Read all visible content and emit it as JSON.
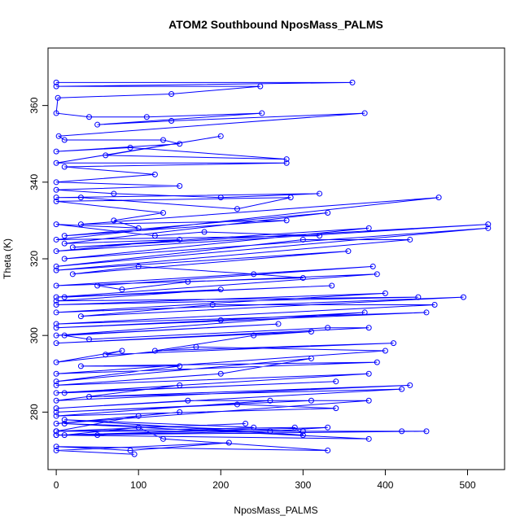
{
  "chart_data": {
    "type": "scatter",
    "title": "ATOM2 Southbound NposMass_PALMS",
    "xlabel": "NposMass_PALMS",
    "ylabel": "Theta (K)",
    "xlim": [
      -10,
      545
    ],
    "ylim": [
      265,
      375
    ],
    "x_ticks": [
      0,
      100,
      200,
      300,
      400,
      500
    ],
    "y_ticks": [
      280,
      300,
      320,
      340,
      360
    ],
    "x_tick_labels": [
      "0",
      "100",
      "200",
      "300",
      "400",
      "500"
    ],
    "y_tick_labels": [
      "280",
      "300",
      "320",
      "340",
      "360"
    ],
    "grid": false,
    "legend": "none",
    "marker": "open-circle",
    "connect_points": true,
    "color": "#0000ff",
    "series": [
      {
        "x": [
          0,
          360,
          0,
          248,
          140,
          2,
          0,
          40,
          110,
          250,
          50,
          140,
          375,
          3,
          10,
          130,
          150,
          0,
          90,
          280,
          60,
          200,
          0,
          280,
          10,
          120,
          0,
          150,
          0,
          70,
          200,
          320,
          0,
          30,
          220,
          285,
          0,
          130,
          70,
          100,
          0,
          120,
          180,
          320,
          0,
          465,
          30,
          280,
          10,
          330,
          10,
          150,
          0,
          525,
          20,
          380,
          10,
          525,
          0,
          300,
          430,
          0,
          355,
          20,
          100,
          240,
          300,
          0,
          385,
          50,
          80,
          160,
          390,
          0,
          335,
          10,
          200,
          0,
          440,
          0,
          400,
          0,
          495,
          30,
          190,
          460,
          0,
          450,
          0,
          200,
          375,
          0,
          270,
          10,
          40,
          330,
          380,
          0,
          310,
          240,
          120,
          410,
          60,
          80,
          0,
          170,
          400,
          0,
          390,
          30,
          150,
          0,
          310,
          200,
          0,
          380,
          0,
          340,
          10,
          150,
          0,
          430,
          40,
          420,
          0,
          160,
          310,
          0,
          220,
          340,
          0,
          260,
          380,
          0,
          150,
          100,
          0,
          230,
          0,
          290,
          300,
          10,
          240,
          50,
          0,
          380,
          10,
          300,
          0,
          420,
          450,
          0,
          330,
          260,
          10,
          100,
          130,
          330,
          0,
          90,
          210,
          0,
          95
        ],
        "y": [
          366,
          366,
          365,
          365,
          363,
          362,
          358,
          357,
          357,
          358,
          355,
          356,
          358,
          352,
          351,
          351,
          350,
          348,
          349,
          346,
          347,
          352,
          345,
          345,
          344,
          342,
          340,
          339,
          338,
          337,
          336,
          337,
          336,
          336,
          333,
          336,
          335,
          332,
          330,
          328,
          329,
          326,
          327,
          326,
          325,
          336,
          329,
          330,
          326,
          332,
          324,
          325,
          322,
          329,
          323,
          328,
          320,
          328,
          318,
          325,
          325,
          317,
          322,
          316,
          318,
          316,
          315,
          313,
          318,
          313,
          312,
          314,
          316,
          310,
          313,
          310,
          312,
          309,
          310,
          308,
          311,
          306,
          310,
          305,
          308,
          308,
          303,
          306,
          302,
          304,
          306,
          300,
          303,
          300,
          299,
          302,
          302,
          298,
          301,
          300,
          296,
          298,
          295,
          296,
          293,
          297,
          296,
          290,
          293,
          292,
          292,
          288,
          294,
          290,
          287,
          290,
          285,
          288,
          285,
          287,
          283,
          287,
          284,
          286,
          281,
          283,
          283,
          280,
          282,
          281,
          279,
          283,
          283,
          277,
          280,
          279,
          275,
          277,
          275,
          276,
          274,
          278,
          276,
          274,
          274,
          273,
          277,
          275,
          275,
          275,
          275,
          274,
          276,
          275,
          274,
          276,
          273,
          270,
          271,
          270,
          272,
          270,
          269
        ]
      }
    ]
  }
}
